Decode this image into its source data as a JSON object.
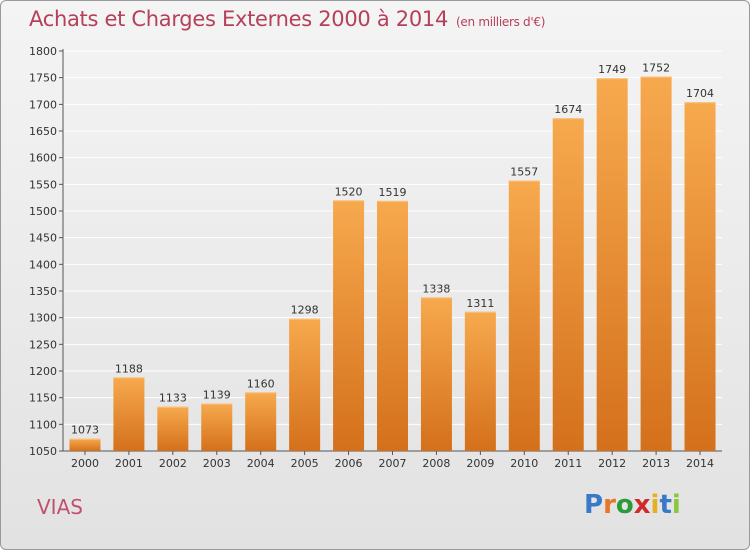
{
  "header": {
    "title": "Achats et Charges Externes 2000 à 2014",
    "unit": "(en milliers d'€)"
  },
  "place": "VIAS",
  "logo": {
    "text": "Proxiti",
    "colors": [
      "#3a78c8",
      "#e8752a",
      "#2a9a3a",
      "#d02a2a",
      "#e8b020",
      "#3a78c8",
      "#8cc63f"
    ]
  },
  "colors": {
    "bar_top": "#f7a94e",
    "bar_bottom": "#d4701c",
    "title": "#b5405a",
    "grid": "#ffffff"
  },
  "chart_data": {
    "type": "bar",
    "categories": [
      "2000",
      "2001",
      "2002",
      "2003",
      "2004",
      "2005",
      "2006",
      "2007",
      "2008",
      "2009",
      "2010",
      "2011",
      "2012",
      "2013",
      "2014"
    ],
    "values": [
      1073,
      1188,
      1133,
      1139,
      1160,
      1298,
      1520,
      1519,
      1338,
      1311,
      1557,
      1674,
      1749,
      1752,
      1704
    ],
    "yticks": [
      1050,
      1100,
      1150,
      1200,
      1250,
      1300,
      1350,
      1400,
      1450,
      1500,
      1550,
      1600,
      1650,
      1700,
      1750,
      1800
    ],
    "ylim": [
      1050,
      1800
    ],
    "grid": true,
    "data_labels": true,
    "title": "Achats et Charges Externes 2000 à 2014",
    "xlabel": "",
    "ylabel": ""
  }
}
